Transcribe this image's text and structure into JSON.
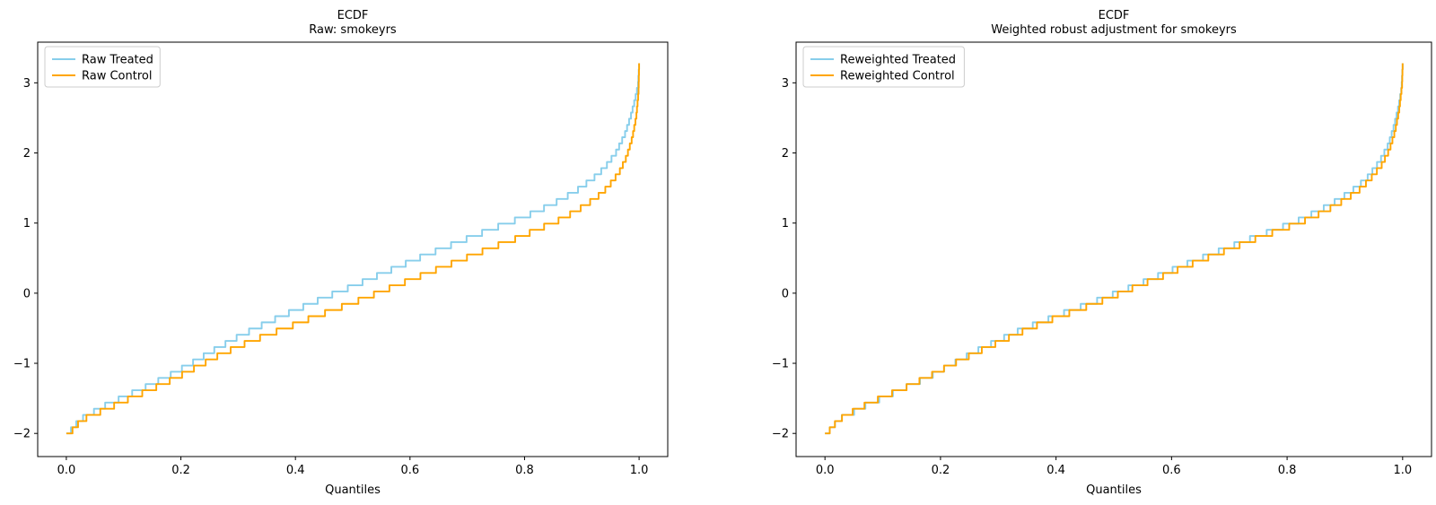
{
  "figure": {
    "background": "#ffffff"
  },
  "colors": {
    "treated_line": "#87CEEB",
    "control_line": "#FFA500",
    "axis": "#000000",
    "legend_border": "#cccccc",
    "legend_background": "#ffffff"
  },
  "chart_data": [
    {
      "type": "line",
      "subtype": "quantile_step_ecdf",
      "title": "ECDF",
      "subtitle": "Raw: smokeyrs",
      "xlabel": "Quantiles",
      "xlim": [
        -0.05,
        1.05
      ],
      "ylim": [
        -2.33,
        3.58
      ],
      "grid": false,
      "legend_position": "upper-left",
      "xtick_values": [
        0.0,
        0.2,
        0.4,
        0.6,
        0.8,
        1.0
      ],
      "xtick_labels": [
        "0.0",
        "0.2",
        "0.4",
        "0.6",
        "0.8",
        "1.0"
      ],
      "ytick_values": [
        3,
        2,
        1,
        0,
        -1,
        -2
      ],
      "ytick_labels": [
        "3",
        "2",
        "1",
        "0",
        "−1",
        "−2"
      ],
      "value_step": 0.088,
      "value_min": -2.0,
      "value_max": 3.28,
      "series": [
        {
          "name": "Raw Treated",
          "color": "#87CEEB",
          "points": [
            [
              0.0,
              -2.0
            ],
            [
              0.004,
              -1.96
            ],
            [
              0.01,
              -1.89
            ],
            [
              0.02,
              -1.8
            ],
            [
              0.03,
              -1.73
            ],
            [
              0.05,
              -1.64
            ],
            [
              0.07,
              -1.55
            ],
            [
              0.1,
              -1.44
            ],
            [
              0.14,
              -1.29
            ],
            [
              0.18,
              -1.13
            ],
            [
              0.22,
              -0.95
            ],
            [
              0.26,
              -0.76
            ],
            [
              0.3,
              -0.58
            ],
            [
              0.34,
              -0.42
            ],
            [
              0.38,
              -0.27
            ],
            [
              0.42,
              -0.13
            ],
            [
              0.46,
              0.01
            ],
            [
              0.5,
              0.14
            ],
            [
              0.54,
              0.28
            ],
            [
              0.58,
              0.42
            ],
            [
              0.62,
              0.56
            ],
            [
              0.66,
              0.69
            ],
            [
              0.7,
              0.82
            ],
            [
              0.74,
              0.95
            ],
            [
              0.78,
              1.07
            ],
            [
              0.82,
              1.2
            ],
            [
              0.86,
              1.36
            ],
            [
              0.89,
              1.5
            ],
            [
              0.92,
              1.68
            ],
            [
              0.94,
              1.83
            ],
            [
              0.96,
              2.05
            ],
            [
              0.975,
              2.3
            ],
            [
              0.985,
              2.55
            ],
            [
              0.993,
              2.8
            ],
            [
              0.998,
              3.0
            ],
            [
              1.0,
              3.28
            ]
          ]
        },
        {
          "name": "Raw Control",
          "color": "#FFA500",
          "points": [
            [
              0.0,
              -2.0
            ],
            [
              0.005,
              -1.97
            ],
            [
              0.012,
              -1.9
            ],
            [
              0.022,
              -1.81
            ],
            [
              0.034,
              -1.74
            ],
            [
              0.056,
              -1.66
            ],
            [
              0.078,
              -1.58
            ],
            [
              0.108,
              -1.47
            ],
            [
              0.148,
              -1.33
            ],
            [
              0.188,
              -1.18
            ],
            [
              0.228,
              -1.01
            ],
            [
              0.265,
              -0.85
            ],
            [
              0.305,
              -0.7
            ],
            [
              0.345,
              -0.57
            ],
            [
              0.385,
              -0.45
            ],
            [
              0.425,
              -0.32
            ],
            [
              0.465,
              -0.2
            ],
            [
              0.505,
              -0.08
            ],
            [
              0.545,
              0.05
            ],
            [
              0.585,
              0.18
            ],
            [
              0.625,
              0.31
            ],
            [
              0.665,
              0.44
            ],
            [
              0.705,
              0.57
            ],
            [
              0.745,
              0.7
            ],
            [
              0.785,
              0.82
            ],
            [
              0.825,
              0.96
            ],
            [
              0.865,
              1.1
            ],
            [
              0.895,
              1.24
            ],
            [
              0.925,
              1.4
            ],
            [
              0.945,
              1.55
            ],
            [
              0.965,
              1.76
            ],
            [
              0.978,
              1.98
            ],
            [
              0.988,
              2.25
            ],
            [
              0.995,
              2.55
            ],
            [
              0.999,
              2.9
            ],
            [
              1.0,
              3.28
            ]
          ]
        }
      ]
    },
    {
      "type": "line",
      "subtype": "quantile_step_ecdf",
      "title": "ECDF",
      "subtitle": "Weighted robust adjustment for smokeyrs",
      "xlabel": "Quantiles",
      "xlim": [
        -0.05,
        1.05
      ],
      "ylim": [
        -2.33,
        3.58
      ],
      "grid": false,
      "legend_position": "upper-left",
      "xtick_values": [
        0.0,
        0.2,
        0.4,
        0.6,
        0.8,
        1.0
      ],
      "xtick_labels": [
        "0.0",
        "0.2",
        "0.4",
        "0.6",
        "0.8",
        "1.0"
      ],
      "ytick_values": [
        3,
        2,
        1,
        0,
        -1,
        -2
      ],
      "ytick_labels": [
        "3",
        "2",
        "1",
        "0",
        "−1",
        "−2"
      ],
      "value_step": 0.088,
      "value_min": -2.0,
      "value_max": 3.28,
      "series": [
        {
          "name": "Reweighted Treated",
          "color": "#87CEEB",
          "points": [
            [
              0.0,
              -2.0
            ],
            [
              0.004,
              -1.96
            ],
            [
              0.01,
              -1.89
            ],
            [
              0.02,
              -1.8
            ],
            [
              0.03,
              -1.73
            ],
            [
              0.05,
              -1.65
            ],
            [
              0.07,
              -1.56
            ],
            [
              0.1,
              -1.45
            ],
            [
              0.14,
              -1.3
            ],
            [
              0.18,
              -1.15
            ],
            [
              0.22,
              -0.97
            ],
            [
              0.26,
              -0.79
            ],
            [
              0.3,
              -0.63
            ],
            [
              0.34,
              -0.48
            ],
            [
              0.38,
              -0.35
            ],
            [
              0.42,
              -0.22
            ],
            [
              0.46,
              -0.1
            ],
            [
              0.5,
              0.03
            ],
            [
              0.54,
              0.16
            ],
            [
              0.58,
              0.3
            ],
            [
              0.62,
              0.44
            ],
            [
              0.66,
              0.57
            ],
            [
              0.7,
              0.7
            ],
            [
              0.74,
              0.83
            ],
            [
              0.78,
              0.95
            ],
            [
              0.82,
              1.08
            ],
            [
              0.86,
              1.24
            ],
            [
              0.89,
              1.38
            ],
            [
              0.92,
              1.55
            ],
            [
              0.94,
              1.7
            ],
            [
              0.96,
              1.92
            ],
            [
              0.975,
              2.15
            ],
            [
              0.985,
              2.42
            ],
            [
              0.993,
              2.7
            ],
            [
              0.998,
              2.95
            ],
            [
              1.0,
              3.28
            ]
          ]
        },
        {
          "name": "Reweighted Control",
          "color": "#FFA500",
          "points": [
            [
              0.0,
              -2.0
            ],
            [
              0.005,
              -1.95
            ],
            [
              0.011,
              -1.88
            ],
            [
              0.021,
              -1.79
            ],
            [
              0.032,
              -1.72
            ],
            [
              0.052,
              -1.63
            ],
            [
              0.073,
              -1.54
            ],
            [
              0.103,
              -1.43
            ],
            [
              0.143,
              -1.29
            ],
            [
              0.183,
              -1.13
            ],
            [
              0.223,
              -0.96
            ],
            [
              0.263,
              -0.8
            ],
            [
              0.303,
              -0.65
            ],
            [
              0.343,
              -0.5
            ],
            [
              0.383,
              -0.36
            ],
            [
              0.423,
              -0.24
            ],
            [
              0.463,
              -0.12
            ],
            [
              0.503,
              0.01
            ],
            [
              0.543,
              0.15
            ],
            [
              0.583,
              0.28
            ],
            [
              0.623,
              0.42
            ],
            [
              0.663,
              0.55
            ],
            [
              0.703,
              0.68
            ],
            [
              0.743,
              0.81
            ],
            [
              0.783,
              0.93
            ],
            [
              0.823,
              1.05
            ],
            [
              0.863,
              1.2
            ],
            [
              0.893,
              1.34
            ],
            [
              0.923,
              1.5
            ],
            [
              0.943,
              1.66
            ],
            [
              0.963,
              1.86
            ],
            [
              0.977,
              2.08
            ],
            [
              0.987,
              2.35
            ],
            [
              0.994,
              2.65
            ],
            [
              0.999,
              3.0
            ],
            [
              1.0,
              3.28
            ]
          ]
        }
      ]
    }
  ]
}
